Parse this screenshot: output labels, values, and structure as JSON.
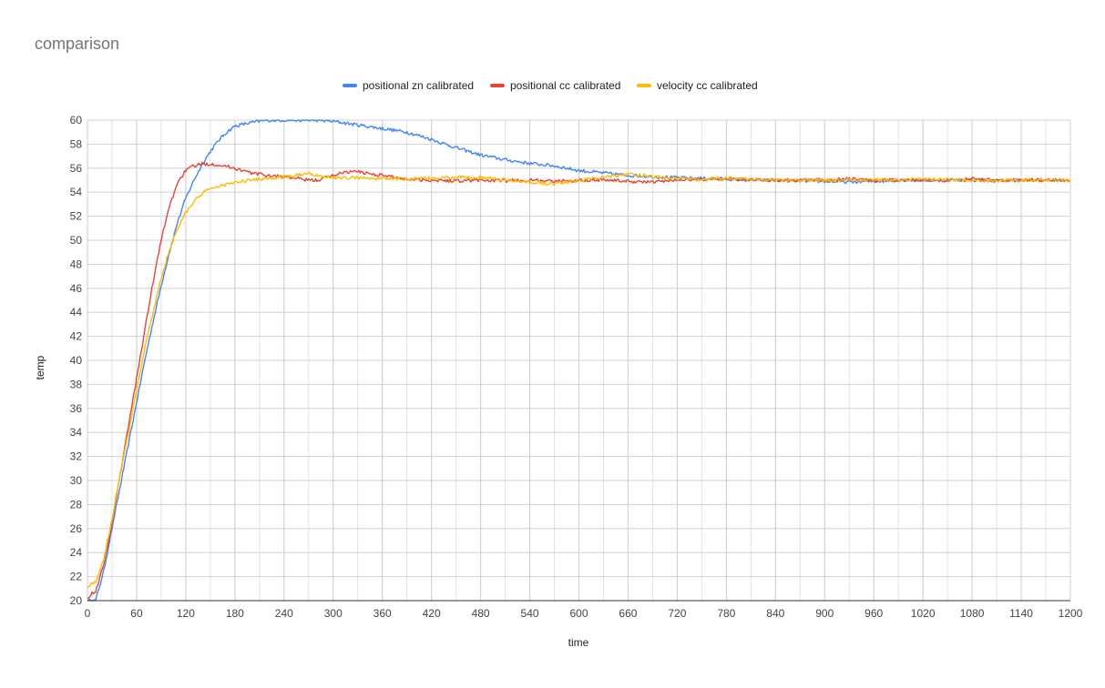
{
  "chart_data": {
    "type": "line",
    "title": "comparison",
    "xlabel": "time",
    "ylabel": "temp",
    "xlim": [
      0,
      1200
    ],
    "ylim": [
      20,
      60
    ],
    "x_ticks": [
      0,
      60,
      120,
      180,
      240,
      300,
      360,
      420,
      480,
      540,
      600,
      660,
      720,
      780,
      840,
      900,
      960,
      1020,
      1080,
      1140,
      1200
    ],
    "y_ticks": [
      20,
      22,
      24,
      26,
      28,
      30,
      32,
      34,
      36,
      38,
      40,
      42,
      44,
      46,
      48,
      50,
      52,
      54,
      56,
      58,
      60
    ],
    "grid": true,
    "legend_position": "top",
    "series": [
      {
        "name": "positional zn calibrated",
        "color": "#4285f4",
        "points": [
          [
            0,
            20
          ],
          [
            10,
            20
          ],
          [
            20,
            22.5
          ],
          [
            30,
            26
          ],
          [
            40,
            29.5
          ],
          [
            50,
            33
          ],
          [
            60,
            36.5
          ],
          [
            70,
            40
          ],
          [
            80,
            43.2
          ],
          [
            90,
            46.2
          ],
          [
            100,
            49
          ],
          [
            110,
            51.5
          ],
          [
            120,
            53.5
          ],
          [
            130,
            55
          ],
          [
            140,
            56.3
          ],
          [
            150,
            57.4
          ],
          [
            160,
            58.3
          ],
          [
            170,
            59
          ],
          [
            180,
            59.5
          ],
          [
            200,
            59.8
          ],
          [
            220,
            60
          ],
          [
            240,
            60
          ],
          [
            260,
            60
          ],
          [
            280,
            60
          ],
          [
            300,
            59.9
          ],
          [
            330,
            59.6
          ],
          [
            360,
            59.3
          ],
          [
            390,
            59
          ],
          [
            420,
            58.4
          ],
          [
            450,
            57.7
          ],
          [
            480,
            57.1
          ],
          [
            510,
            56.7
          ],
          [
            540,
            56.4
          ],
          [
            570,
            56.2
          ],
          [
            600,
            55.8
          ],
          [
            630,
            55.6
          ],
          [
            660,
            55.4
          ],
          [
            690,
            55.3
          ],
          [
            720,
            55.2
          ],
          [
            750,
            55.15
          ],
          [
            780,
            55.1
          ],
          [
            810,
            55
          ],
          [
            840,
            55
          ],
          [
            870,
            54.95
          ],
          [
            900,
            54.9
          ],
          [
            930,
            54.85
          ],
          [
            960,
            54.9
          ],
          [
            990,
            55
          ],
          [
            1020,
            55
          ],
          [
            1050,
            55
          ],
          [
            1080,
            55
          ],
          [
            1110,
            54.95
          ],
          [
            1140,
            55
          ],
          [
            1170,
            55
          ],
          [
            1200,
            55
          ]
        ]
      },
      {
        "name": "positional cc calibrated",
        "color": "#ea4335",
        "points": [
          [
            0,
            20.3
          ],
          [
            10,
            20.8
          ],
          [
            20,
            23
          ],
          [
            30,
            26.5
          ],
          [
            40,
            30.5
          ],
          [
            50,
            34.5
          ],
          [
            60,
            38.5
          ],
          [
            70,
            42.5
          ],
          [
            80,
            46.5
          ],
          [
            90,
            50
          ],
          [
            100,
            52.8
          ],
          [
            110,
            54.8
          ],
          [
            120,
            55.8
          ],
          [
            130,
            56.2
          ],
          [
            140,
            56.35
          ],
          [
            150,
            56.35
          ],
          [
            160,
            56.3
          ],
          [
            180,
            56
          ],
          [
            200,
            55.6
          ],
          [
            220,
            55.4
          ],
          [
            240,
            55.3
          ],
          [
            260,
            55.1
          ],
          [
            270,
            55
          ],
          [
            280,
            55
          ],
          [
            300,
            55.4
          ],
          [
            315,
            55.7
          ],
          [
            330,
            55.7
          ],
          [
            360,
            55.4
          ],
          [
            390,
            55.1
          ],
          [
            420,
            55
          ],
          [
            450,
            54.95
          ],
          [
            480,
            55
          ],
          [
            510,
            54.95
          ],
          [
            540,
            55
          ],
          [
            570,
            54.9
          ],
          [
            600,
            55
          ],
          [
            630,
            55.05
          ],
          [
            660,
            54.9
          ],
          [
            690,
            54.85
          ],
          [
            720,
            55
          ],
          [
            750,
            55.05
          ],
          [
            780,
            55.1
          ],
          [
            810,
            55.05
          ],
          [
            840,
            55
          ],
          [
            870,
            55
          ],
          [
            900,
            55
          ],
          [
            930,
            55.1
          ],
          [
            960,
            55
          ],
          [
            990,
            55
          ],
          [
            1020,
            55
          ],
          [
            1050,
            55
          ],
          [
            1080,
            55.1
          ],
          [
            1110,
            55
          ],
          [
            1140,
            55
          ],
          [
            1170,
            55
          ],
          [
            1200,
            55
          ]
        ]
      },
      {
        "name": "velocity cc calibrated",
        "color": "#fbbc04",
        "points": [
          [
            0,
            21.2
          ],
          [
            10,
            21.5
          ],
          [
            20,
            23.5
          ],
          [
            30,
            26.8
          ],
          [
            40,
            30.5
          ],
          [
            50,
            34
          ],
          [
            60,
            37.5
          ],
          [
            70,
            41
          ],
          [
            80,
            44
          ],
          [
            90,
            46.8
          ],
          [
            100,
            49.2
          ],
          [
            110,
            51
          ],
          [
            120,
            52.3
          ],
          [
            130,
            53.2
          ],
          [
            140,
            53.9
          ],
          [
            150,
            54.3
          ],
          [
            160,
            54.5
          ],
          [
            180,
            54.8
          ],
          [
            200,
            55
          ],
          [
            220,
            55.15
          ],
          [
            240,
            55.25
          ],
          [
            250,
            55.3
          ],
          [
            260,
            55.5
          ],
          [
            270,
            55.6
          ],
          [
            280,
            55.4
          ],
          [
            300,
            55.2
          ],
          [
            330,
            55.2
          ],
          [
            360,
            55.15
          ],
          [
            390,
            55.1
          ],
          [
            420,
            55.15
          ],
          [
            450,
            55.25
          ],
          [
            480,
            55.2
          ],
          [
            510,
            55.05
          ],
          [
            540,
            54.8
          ],
          [
            570,
            54.7
          ],
          [
            600,
            54.95
          ],
          [
            630,
            55.3
          ],
          [
            660,
            55.5
          ],
          [
            690,
            55.3
          ],
          [
            720,
            55.1
          ],
          [
            750,
            55.1
          ],
          [
            780,
            55.2
          ],
          [
            810,
            55.05
          ],
          [
            840,
            55
          ],
          [
            870,
            55
          ],
          [
            900,
            55
          ],
          [
            930,
            55
          ],
          [
            960,
            55.05
          ],
          [
            990,
            55
          ],
          [
            1020,
            55.1
          ],
          [
            1050,
            55.05
          ],
          [
            1080,
            55
          ],
          [
            1110,
            54.95
          ],
          [
            1140,
            55
          ],
          [
            1170,
            55.05
          ],
          [
            1200,
            55
          ]
        ]
      }
    ]
  }
}
